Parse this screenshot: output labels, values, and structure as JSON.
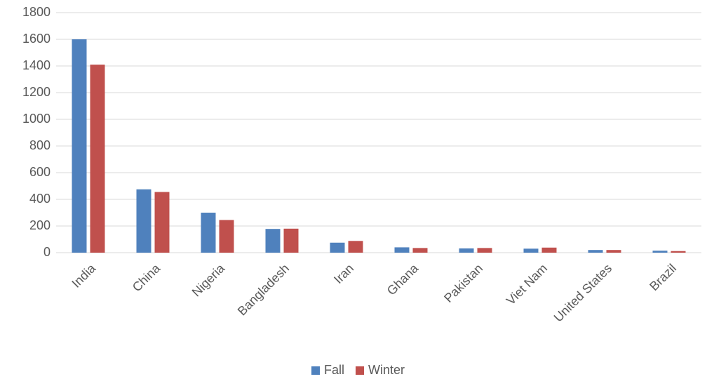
{
  "chart_data": {
    "type": "bar",
    "categories": [
      "India",
      "China",
      "Nigeria",
      "Bangladesh",
      "Iran",
      "Ghana",
      "Pakistan",
      "Viet Nam",
      "United States",
      "Brazil"
    ],
    "series": [
      {
        "name": "Fall",
        "color": "#4f81bd",
        "values": [
          1600,
          475,
          300,
          178,
          75,
          40,
          32,
          30,
          20,
          15
        ]
      },
      {
        "name": "Winter",
        "color": "#c0504d",
        "values": [
          1410,
          455,
          245,
          180,
          88,
          35,
          35,
          38,
          20,
          12
        ]
      }
    ],
    "ylim": [
      0,
      1800
    ],
    "yticks": [
      0,
      200,
      400,
      600,
      800,
      1000,
      1200,
      1400,
      1600,
      1800
    ],
    "grid": true,
    "legend": "bottom"
  }
}
